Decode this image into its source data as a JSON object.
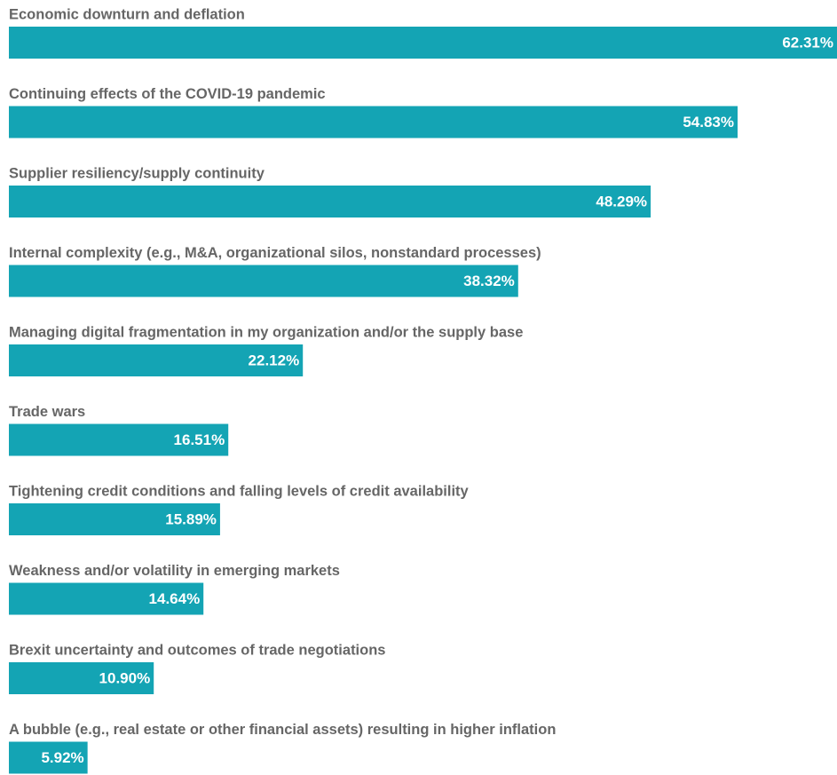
{
  "chart_data": {
    "type": "bar",
    "orientation": "horizontal",
    "color": "#14a4b4",
    "categories": [
      "Economic downturn and deflation",
      "Continuing effects of the COVID-19 pandemic",
      "Supplier resiliency/supply continuity",
      "Internal complexity (e.g., M&A, organizational silos, nonstandard processes)",
      "Managing digital fragmentation in my organization and/or the supply base",
      "Trade wars",
      "Tightening credit conditions and falling levels of credit availability",
      "Weakness and/or volatility in emerging markets",
      "Brexit uncertainty and outcomes of trade negotiations",
      "A bubble (e.g., real estate or other financial assets) resulting in higher inflation"
    ],
    "values": [
      62.31,
      54.83,
      48.29,
      38.32,
      22.12,
      16.51,
      15.89,
      14.64,
      10.9,
      5.92
    ],
    "value_labels": [
      "62.31%",
      "54.83%",
      "48.29%",
      "38.32%",
      "22.12%",
      "16.51%",
      "15.89%",
      "14.64%",
      "10.90%",
      "5.92%"
    ]
  }
}
